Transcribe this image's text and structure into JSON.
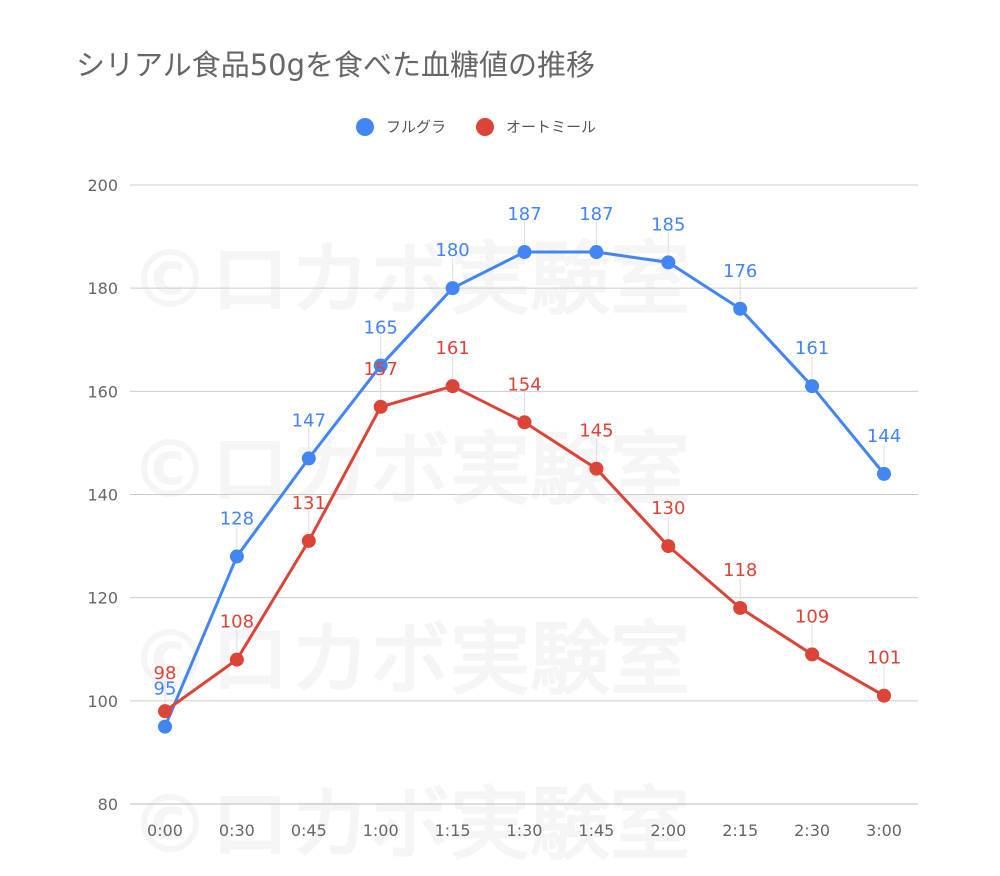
{
  "chart_data": {
    "type": "line",
    "title": "シリアル食品50gを食べた血糖値の推移",
    "xlabel": "",
    "ylabel": "",
    "categories": [
      "0:00",
      "0:30",
      "0:45",
      "1:00",
      "1:15",
      "1:30",
      "1:45",
      "2:00",
      "2:15",
      "2:30",
      "3:00"
    ],
    "ylim": [
      80,
      200
    ],
    "yticks": [
      80,
      100,
      120,
      140,
      160,
      180,
      200
    ],
    "grid": true,
    "legend_position": "top",
    "series": [
      {
        "name": "フルグラ",
        "color": "#4285f4",
        "values": [
          95,
          128,
          147,
          165,
          180,
          187,
          187,
          185,
          176,
          161,
          144
        ]
      },
      {
        "name": "オートミール",
        "color": "#db4437",
        "values": [
          98,
          108,
          131,
          157,
          161,
          154,
          145,
          130,
          118,
          109,
          101
        ]
      }
    ]
  },
  "watermark": "©ロカボ実験室"
}
